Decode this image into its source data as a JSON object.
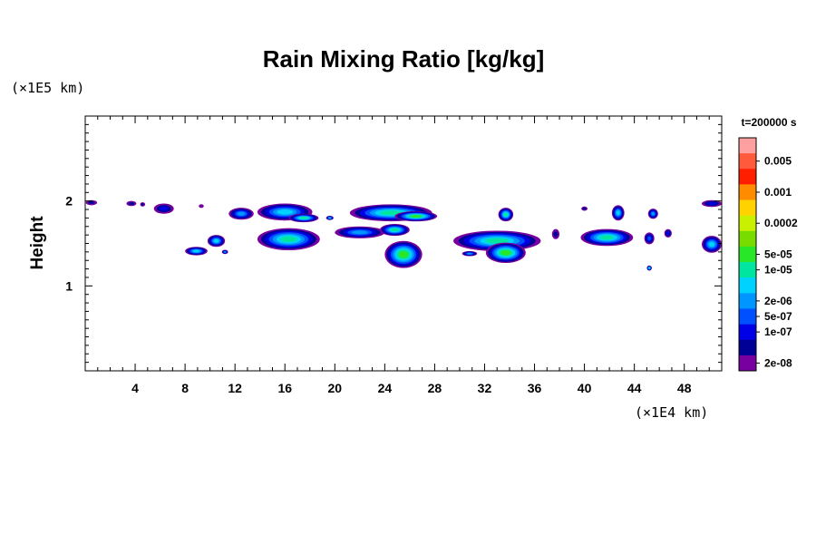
{
  "chart_data": {
    "type": "heatmap",
    "title": "Rain Mixing Ratio [kg/kg]",
    "ylabel": "Height",
    "xlabel": "",
    "y_unit_label": "(×1E5 km)",
    "x_unit_label": "(×1E4 km)",
    "time_label": "t=200000 s",
    "xlim": [
      0,
      51
    ],
    "ylim": [
      0,
      3
    ],
    "x_ticks": [
      4,
      8,
      12,
      16,
      20,
      24,
      28,
      32,
      36,
      40,
      44,
      48
    ],
    "y_ticks": [
      1,
      2
    ],
    "x_tick_labels": [
      "4",
      "8",
      "12",
      "16",
      "20",
      "24",
      "28",
      "32",
      "36",
      "40",
      "44",
      "48"
    ],
    "y_tick_labels": [
      "1",
      "2"
    ],
    "colorbar": {
      "levels": [
        "0.005",
        "0.001",
        "0.0002",
        "5e-05",
        "1e-05",
        "2e-06",
        "5e-07",
        "1e-07",
        "2e-08"
      ],
      "colors": [
        "#ffa0a0",
        "#ff5a3c",
        "#ff1e00",
        "#ff8c00",
        "#ffd200",
        "#c8f000",
        "#78dc00",
        "#28e628",
        "#00e6a0",
        "#00d2ff",
        "#0096ff",
        "#0050ff",
        "#0000e6",
        "#000096",
        "#7800a0"
      ]
    },
    "features": [
      {
        "x": 0.5,
        "y": 1.98,
        "w": 0.9,
        "h": 0.06,
        "level": 13
      },
      {
        "x": 3.7,
        "y": 1.97,
        "w": 0.8,
        "h": 0.06,
        "level": 13
      },
      {
        "x": 4.6,
        "y": 1.96,
        "w": 0.4,
        "h": 0.05,
        "level": 13
      },
      {
        "x": 6.3,
        "y": 1.91,
        "w": 1.6,
        "h": 0.12,
        "level": 12
      },
      {
        "x": 9.3,
        "y": 1.94,
        "w": 0.4,
        "h": 0.04,
        "level": 14
      },
      {
        "x": 12.5,
        "y": 1.85,
        "w": 2.0,
        "h": 0.14,
        "level": 10
      },
      {
        "x": 16.0,
        "y": 1.87,
        "w": 4.4,
        "h": 0.2,
        "level": 9
      },
      {
        "x": 17.5,
        "y": 1.8,
        "w": 2.4,
        "h": 0.1,
        "level": 8
      },
      {
        "x": 19.6,
        "y": 1.8,
        "w": 0.6,
        "h": 0.05,
        "level": 9
      },
      {
        "x": 24.5,
        "y": 1.86,
        "w": 6.6,
        "h": 0.2,
        "level": 8
      },
      {
        "x": 26.5,
        "y": 1.82,
        "w": 3.4,
        "h": 0.12,
        "level": 7
      },
      {
        "x": 33.7,
        "y": 1.84,
        "w": 1.2,
        "h": 0.16,
        "level": 8
      },
      {
        "x": 42.7,
        "y": 1.86,
        "w": 1.0,
        "h": 0.18,
        "level": 9
      },
      {
        "x": 45.5,
        "y": 1.85,
        "w": 0.8,
        "h": 0.12,
        "level": 10
      },
      {
        "x": 50.2,
        "y": 1.97,
        "w": 1.6,
        "h": 0.08,
        "level": 12
      },
      {
        "x": 10.5,
        "y": 1.53,
        "w": 1.4,
        "h": 0.14,
        "level": 9
      },
      {
        "x": 8.9,
        "y": 1.41,
        "w": 1.8,
        "h": 0.1,
        "level": 9
      },
      {
        "x": 16.3,
        "y": 1.55,
        "w": 5.0,
        "h": 0.26,
        "level": 8
      },
      {
        "x": 22.0,
        "y": 1.63,
        "w": 4.0,
        "h": 0.14,
        "level": 10
      },
      {
        "x": 24.8,
        "y": 1.66,
        "w": 2.4,
        "h": 0.14,
        "level": 8
      },
      {
        "x": 25.5,
        "y": 1.37,
        "w": 3.0,
        "h": 0.32,
        "level": 7
      },
      {
        "x": 33.0,
        "y": 1.53,
        "w": 7.0,
        "h": 0.24,
        "level": 8
      },
      {
        "x": 33.7,
        "y": 1.39,
        "w": 3.2,
        "h": 0.24,
        "level": 7
      },
      {
        "x": 30.8,
        "y": 1.38,
        "w": 1.2,
        "h": 0.06,
        "level": 10
      },
      {
        "x": 37.7,
        "y": 1.61,
        "w": 0.6,
        "h": 0.12,
        "level": 13
      },
      {
        "x": 41.8,
        "y": 1.57,
        "w": 4.2,
        "h": 0.2,
        "level": 8
      },
      {
        "x": 45.2,
        "y": 1.56,
        "w": 0.8,
        "h": 0.14,
        "level": 11
      },
      {
        "x": 46.7,
        "y": 1.62,
        "w": 0.6,
        "h": 0.1,
        "level": 12
      },
      {
        "x": 50.2,
        "y": 1.49,
        "w": 1.6,
        "h": 0.2,
        "level": 9
      },
      {
        "x": 45.2,
        "y": 1.21,
        "w": 0.4,
        "h": 0.06,
        "level": 8
      },
      {
        "x": 11.2,
        "y": 1.4,
        "w": 0.5,
        "h": 0.05,
        "level": 10
      },
      {
        "x": 40.0,
        "y": 1.91,
        "w": 0.5,
        "h": 0.05,
        "level": 13
      }
    ]
  }
}
